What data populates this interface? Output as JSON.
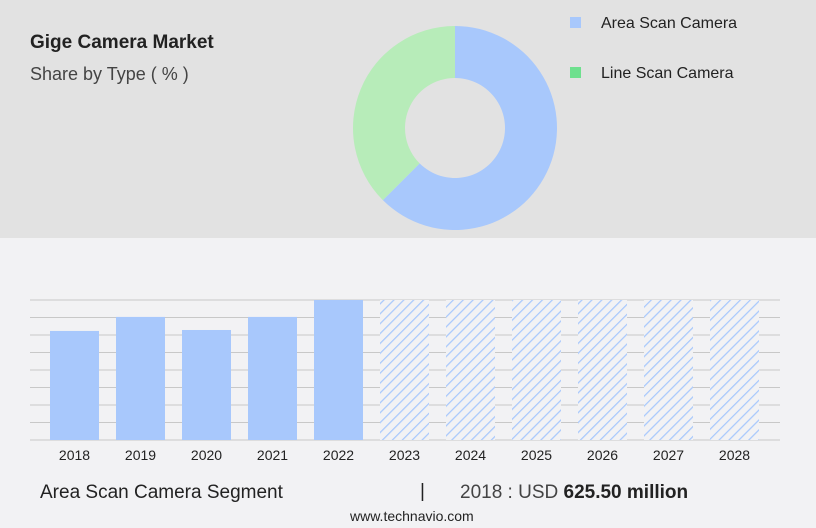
{
  "header": {
    "title": "Gige Camera Market",
    "subtitle": "Share by Type ( % )"
  },
  "chart_data": [
    {
      "type": "pie",
      "donut": true,
      "segments": [
        {
          "name": "Area Scan Camera",
          "value": 62.5,
          "color": "#a8c8fc"
        },
        {
          "name": "Line Scan Camera",
          "value": 37.5,
          "color": "#b7ecb9",
          "legend_color": "#6ee08e"
        }
      ],
      "legend_placement": "right"
    },
    {
      "type": "bar",
      "categories": [
        "2018",
        "2019",
        "2020",
        "2021",
        "2022",
        "2023",
        "2024",
        "2025",
        "2026",
        "2027",
        "2028"
      ],
      "values": [
        625.5,
        706,
        631,
        706,
        803,
        803,
        803,
        803,
        803,
        803,
        803
      ],
      "forecast": [
        false,
        false,
        false,
        false,
        false,
        true,
        true,
        true,
        true,
        true,
        true
      ],
      "ylim": [
        0,
        803
      ],
      "grid": true,
      "color": "#a8c8fc",
      "unit": "USD million"
    }
  ],
  "footer": {
    "segment": "Area Scan Camera Segment",
    "separator": "|",
    "value_prefix": "2018 : USD",
    "value": "625.50 million",
    "site": "www.technavio.com"
  }
}
